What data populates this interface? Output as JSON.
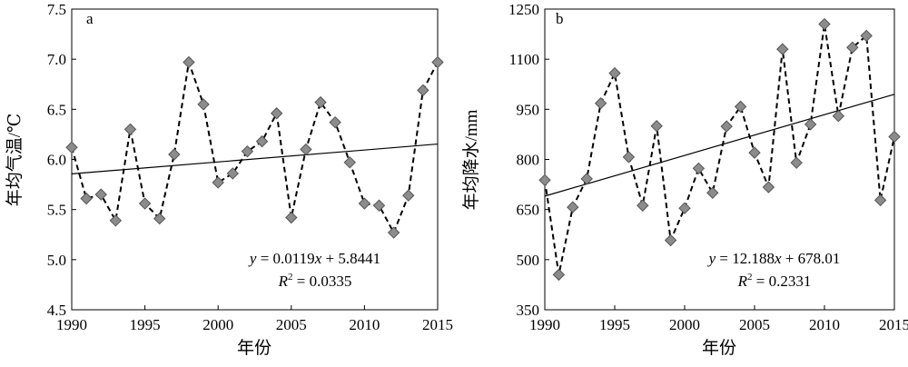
{
  "chart_data": [
    {
      "type": "line",
      "panel_label": "a",
      "xlabel": "年份",
      "ylabel": "年均气温/℃",
      "xlim": [
        1990,
        2015
      ],
      "ylim": [
        4.5,
        7.5
      ],
      "xticks": [
        1990,
        1995,
        2000,
        2005,
        2010,
        2015
      ],
      "yticks": [
        4.5,
        5.0,
        5.5,
        6.0,
        6.5,
        7.0,
        7.5
      ],
      "ytick_labels": [
        "4.5",
        "5.0",
        "5.5",
        "6.0",
        "6.5",
        "7.0",
        "7.5"
      ],
      "x": [
        1990,
        1991,
        1992,
        1993,
        1994,
        1995,
        1996,
        1997,
        1998,
        1999,
        2000,
        2001,
        2002,
        2003,
        2004,
        2005,
        2006,
        2007,
        2008,
        2009,
        2010,
        2011,
        2012,
        2013,
        2014,
        2015
      ],
      "series": [
        {
          "name": "年均气温",
          "style": "dashed-line-diamond-markers",
          "values": [
            6.12,
            5.61,
            5.65,
            5.39,
            6.3,
            5.56,
            5.41,
            6.05,
            6.97,
            6.55,
            5.77,
            5.86,
            6.08,
            6.18,
            6.46,
            5.42,
            6.1,
            6.57,
            6.37,
            5.97,
            5.56,
            5.54,
            5.27,
            5.64,
            6.69,
            6.97
          ]
        }
      ],
      "trendline": {
        "slope": 0.0119,
        "intercept": 5.8441,
        "x_origin": 1989
      },
      "equation": "y = 0.0119x + 5.8441",
      "equation_var_y": "y",
      "equation_var_x": "x",
      "equation_rest1": " = 0.0119",
      "equation_rest2": " + 5.8441",
      "r2_prefix": "R",
      "r2_sup": "2",
      "r2_value": " = 0.0335"
    },
    {
      "type": "line",
      "panel_label": "b",
      "xlabel": "年份",
      "ylabel": "年均降水/mm",
      "xlim": [
        1990,
        2015
      ],
      "ylim": [
        350,
        1250
      ],
      "xticks": [
        1990,
        1995,
        2000,
        2005,
        2010,
        2015
      ],
      "yticks": [
        350,
        500,
        650,
        800,
        950,
        1100,
        1250
      ],
      "ytick_labels": [
        "350",
        "500",
        "650",
        "800",
        "950",
        "1100",
        "1250"
      ],
      "x": [
        1990,
        1991,
        1992,
        1993,
        1994,
        1995,
        1996,
        1997,
        1998,
        1999,
        2000,
        2001,
        2002,
        2003,
        2004,
        2005,
        2006,
        2007,
        2008,
        2009,
        2010,
        2011,
        2012,
        2013,
        2014,
        2015
      ],
      "series": [
        {
          "name": "年均降水",
          "style": "dashed-line-diamond-markers",
          "values": [
            738,
            455,
            657,
            742,
            968,
            1058,
            807,
            662,
            900,
            558,
            654,
            773,
            700,
            899,
            958,
            820,
            717,
            1130,
            790,
            905,
            1205,
            930,
            1135,
            1170,
            678,
            868
          ]
        }
      ],
      "trendline": {
        "slope": 12.188,
        "intercept": 678.01,
        "x_origin": 1989
      },
      "equation": "y = 12.188x + 678.01",
      "equation_var_y": "y",
      "equation_var_x": "x",
      "equation_rest1": " = 12.188",
      "equation_rest2": " + 678.01",
      "r2_prefix": "R",
      "r2_sup": "2",
      "r2_value": " = 0.2331"
    }
  ],
  "colors": {
    "marker_fill": "#8c8c8c",
    "marker_stroke": "#555555",
    "line": "#000000"
  }
}
